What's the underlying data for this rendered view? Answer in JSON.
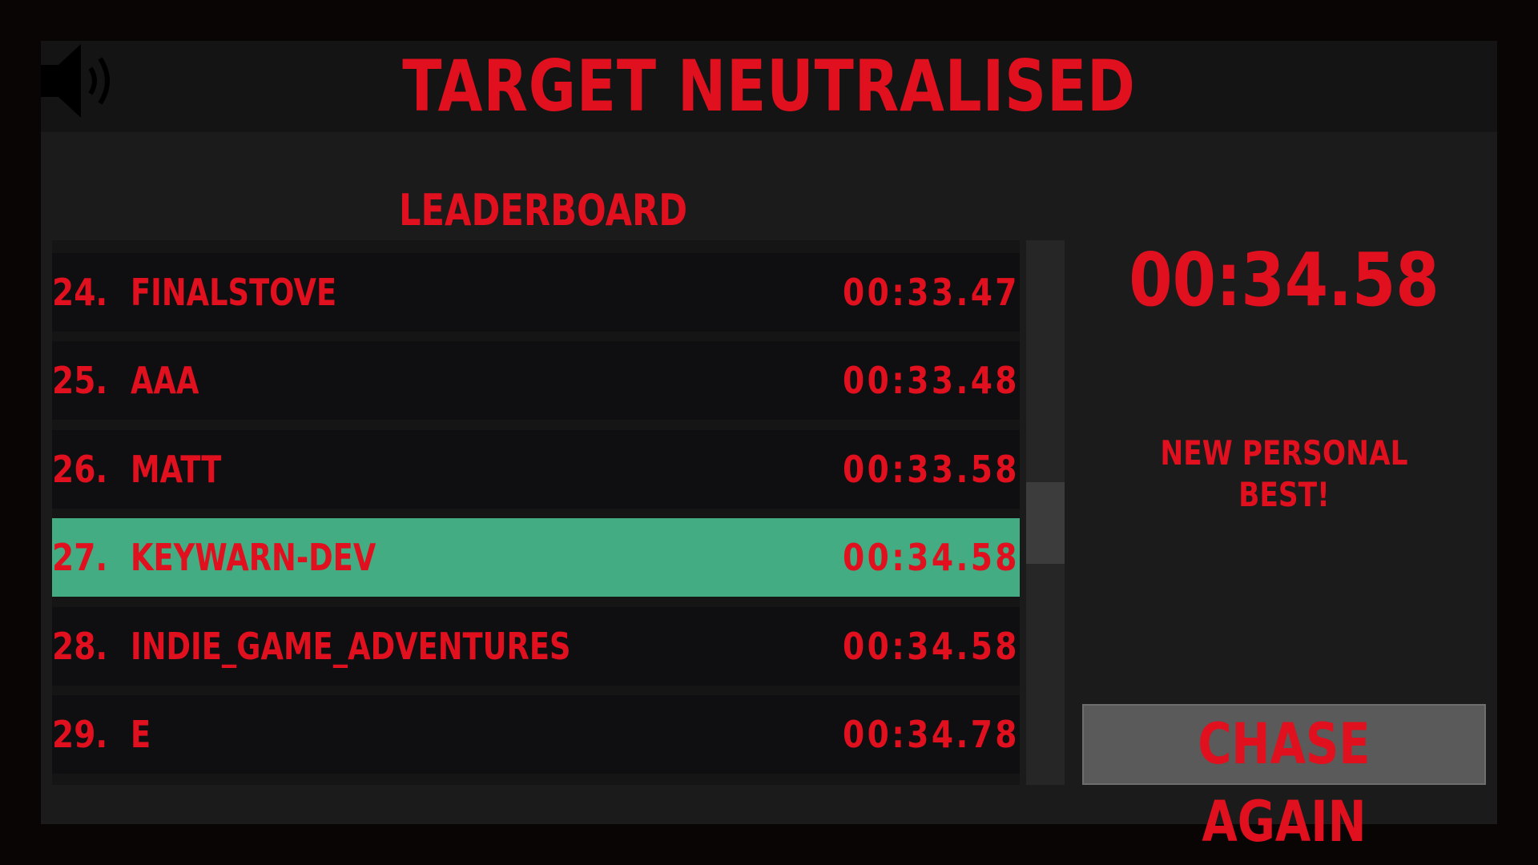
{
  "header": {
    "title": "TARGET NEUTRALISED"
  },
  "leaderboard": {
    "heading": "LEADERBOARD",
    "rows": [
      {
        "rank": "24.",
        "name": "FINALSTOVE",
        "time": "00:33.47"
      },
      {
        "rank": "25.",
        "name": "AAA",
        "time": "00:33.48"
      },
      {
        "rank": "26.",
        "name": "MATT",
        "time": "00:33.58"
      },
      {
        "rank": "27.",
        "name": "KEYWARN-DEV",
        "time": "00:34.58",
        "highlight": true
      },
      {
        "rank": "28.",
        "name": "INDIE_GAME_ADVENTURES",
        "time": "00:34.58"
      },
      {
        "rank": "29.",
        "name": "E",
        "time": "00:34.78"
      }
    ]
  },
  "result": {
    "time": "00:34.58",
    "message": "NEW PERSONAL BEST!",
    "button": "CHASE AGAIN"
  }
}
